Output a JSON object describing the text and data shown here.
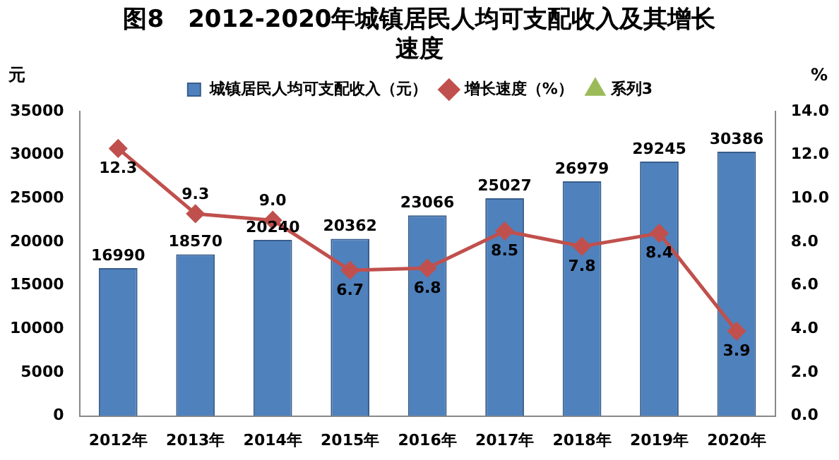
{
  "chart_data": {
    "type": "bar",
    "title": "图8　2012-2020年城镇居民人均可支配收入及其增长速度",
    "ylabel": "元",
    "y2label": "%",
    "categories": [
      "2012年",
      "2013年",
      "2014年",
      "2015年",
      "2016年",
      "2017年",
      "2018年",
      "2019年",
      "2020年"
    ],
    "series": [
      {
        "name": "城镇居民人均可支配收入（元）",
        "color": "#4f81bd",
        "values": [
          16990,
          18570,
          20240,
          20362,
          23066,
          25027,
          26979,
          29245,
          30386
        ]
      },
      {
        "name": "增长速度（%）",
        "type": "line",
        "axis": "y2",
        "marker": "diamond",
        "color": "#c0504d",
        "values": [
          12.3,
          9.3,
          9.0,
          6.7,
          6.8,
          8.5,
          7.8,
          8.4,
          3.9
        ],
        "value_labels": [
          "12.3",
          "9.3",
          "9.0",
          "6.7",
          "6.8",
          "8.5",
          "7.8",
          "8.4",
          "3.9"
        ]
      },
      {
        "name": "系列3",
        "type": "line",
        "axis": "y2",
        "marker": "triangle",
        "color": "#9bbb59",
        "values": [
          null,
          null,
          null,
          null,
          null,
          null,
          null,
          null,
          null
        ]
      }
    ],
    "ylim": [
      0,
      35000
    ],
    "yticks": [
      0,
      5000,
      10000,
      15000,
      20000,
      25000,
      30000,
      35000
    ],
    "y2lim": [
      0,
      14
    ],
    "y2ticks": [
      {
        "value": 0,
        "label": "0.0"
      },
      {
        "value": 2,
        "label": "2.0"
      },
      {
        "value": 4,
        "label": "4.0"
      },
      {
        "value": 6,
        "label": "6.0"
      },
      {
        "value": 8,
        "label": "8.0"
      },
      {
        "value": 10,
        "label": "10.0"
      },
      {
        "value": 12,
        "label": "12.0"
      },
      {
        "value": 14,
        "label": "14.0"
      }
    ],
    "legend": "top",
    "data_labels": true,
    "grid": false
  }
}
